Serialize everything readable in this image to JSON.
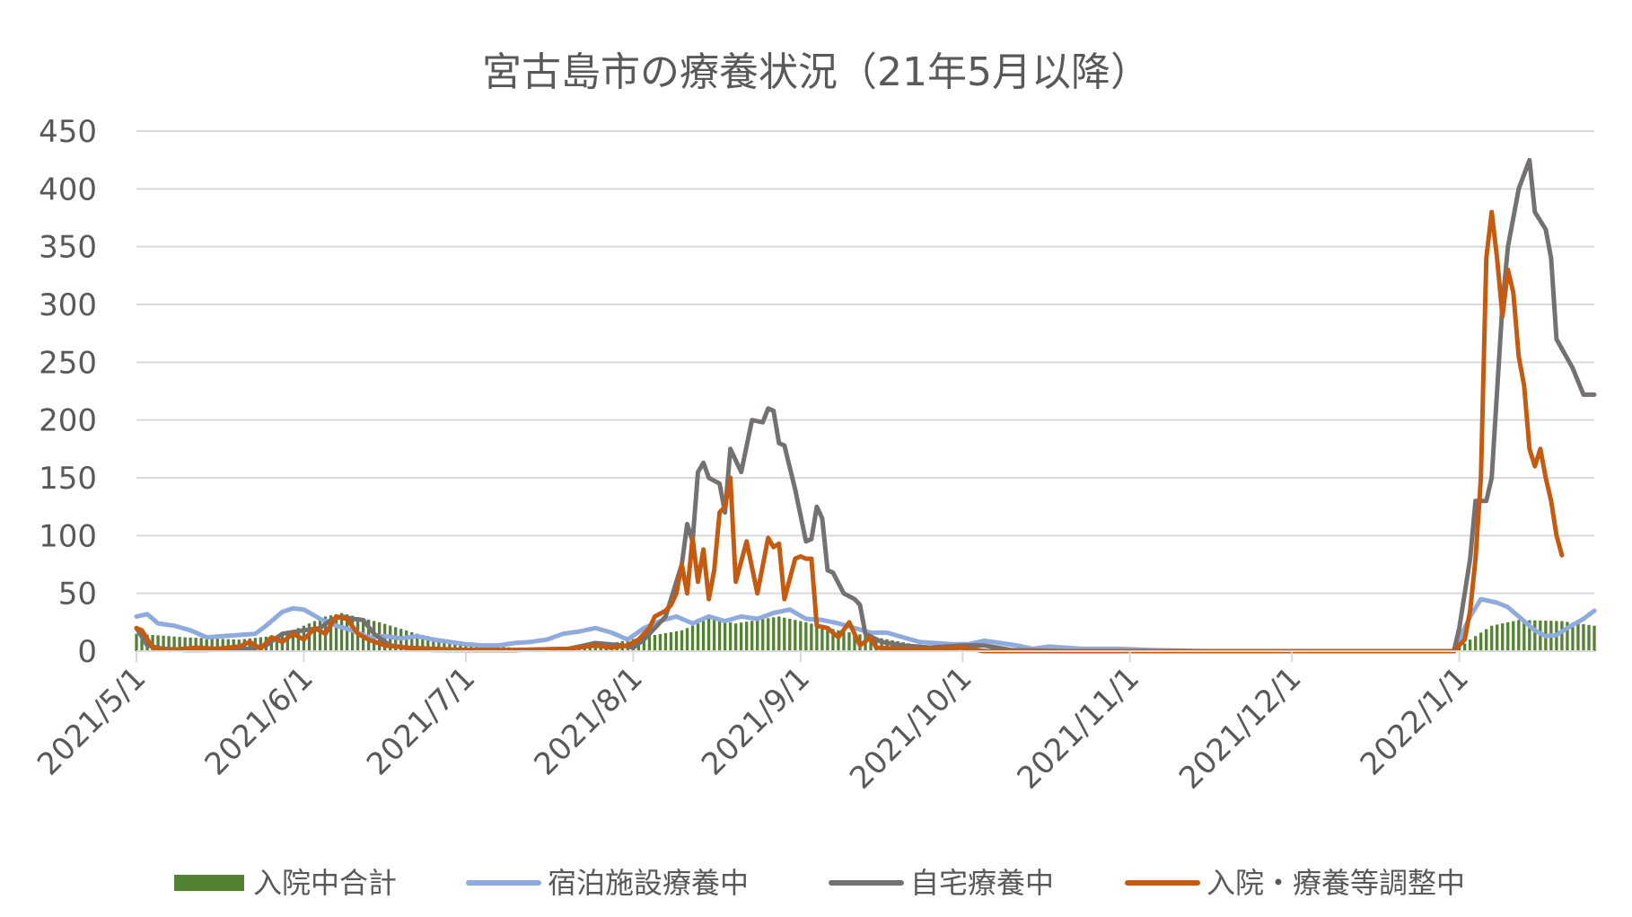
{
  "chart_data": {
    "type": "line",
    "title": "宮古島市の療養状況（21年5月以降）",
    "xlabel": "",
    "ylabel": "",
    "ylim": [
      0,
      450
    ],
    "yticks": [
      "0",
      "50",
      "100",
      "150",
      "200",
      "250",
      "300",
      "350",
      "400",
      "450"
    ],
    "xlim": [
      "2021/5/1",
      "2022/1/26"
    ],
    "xtick_labels": [
      "2021/5/1",
      "2021/6/1",
      "2021/7/1",
      "2021/8/1",
      "2021/9/1",
      "2021/10/1",
      "2021/11/1",
      "2021/12/1",
      "2022/1/1"
    ],
    "xtick_dates": [
      "2021-05-01",
      "2021-06-01",
      "2021-07-01",
      "2021-08-01",
      "2021-09-01",
      "2021-10-01",
      "2021-11-01",
      "2021-12-01",
      "2022-01-01"
    ],
    "grid": true,
    "legend_position": "bottom",
    "series": [
      {
        "name": "入院中合計",
        "type": "bar",
        "color": "#548235",
        "points": [
          [
            "2021-05-01",
            15
          ],
          [
            "2021-05-10",
            12
          ],
          [
            "2021-05-20",
            10
          ],
          [
            "2021-05-28",
            14
          ],
          [
            "2021-06-05",
            30
          ],
          [
            "2021-06-08",
            33
          ],
          [
            "2021-06-15",
            25
          ],
          [
            "2021-06-22",
            15
          ],
          [
            "2021-07-01",
            6
          ],
          [
            "2021-07-10",
            3
          ],
          [
            "2021-07-20",
            3
          ],
          [
            "2021-07-28",
            7
          ],
          [
            "2021-08-05",
            14
          ],
          [
            "2021-08-10",
            18
          ],
          [
            "2021-08-15",
            28
          ],
          [
            "2021-08-20",
            24
          ],
          [
            "2021-08-28",
            30
          ],
          [
            "2021-09-02",
            25
          ],
          [
            "2021-09-08",
            18
          ],
          [
            "2021-09-15",
            12
          ],
          [
            "2021-09-22",
            6
          ],
          [
            "2021-10-01",
            3
          ],
          [
            "2021-10-10",
            1
          ],
          [
            "2021-10-20",
            0
          ],
          [
            "2021-12-31",
            0
          ],
          [
            "2022-01-03",
            10
          ],
          [
            "2022-01-07",
            22
          ],
          [
            "2022-01-12",
            27
          ],
          [
            "2022-01-20",
            26
          ],
          [
            "2022-01-26",
            22
          ]
        ]
      },
      {
        "name": "宿泊施設療養中",
        "type": "line",
        "color": "#8faadc",
        "points": [
          [
            "2021-05-01",
            30
          ],
          [
            "2021-05-03",
            32
          ],
          [
            "2021-05-05",
            24
          ],
          [
            "2021-05-08",
            22
          ],
          [
            "2021-05-11",
            18
          ],
          [
            "2021-05-14",
            12
          ],
          [
            "2021-05-17",
            13
          ],
          [
            "2021-05-20",
            14
          ],
          [
            "2021-05-23",
            15
          ],
          [
            "2021-05-25",
            22
          ],
          [
            "2021-05-28",
            34
          ],
          [
            "2021-05-30",
            37
          ],
          [
            "2021-06-01",
            36
          ],
          [
            "2021-06-04",
            28
          ],
          [
            "2021-06-07",
            22
          ],
          [
            "2021-06-10",
            18
          ],
          [
            "2021-06-13",
            12
          ],
          [
            "2021-06-16",
            13
          ],
          [
            "2021-06-19",
            11
          ],
          [
            "2021-06-22",
            13
          ],
          [
            "2021-06-25",
            10
          ],
          [
            "2021-06-28",
            8
          ],
          [
            "2021-07-01",
            6
          ],
          [
            "2021-07-04",
            5
          ],
          [
            "2021-07-07",
            5
          ],
          [
            "2021-07-10",
            7
          ],
          [
            "2021-07-13",
            8
          ],
          [
            "2021-07-16",
            10
          ],
          [
            "2021-07-19",
            15
          ],
          [
            "2021-07-22",
            17
          ],
          [
            "2021-07-25",
            20
          ],
          [
            "2021-07-28",
            16
          ],
          [
            "2021-07-31",
            10
          ],
          [
            "2021-08-03",
            20
          ],
          [
            "2021-08-06",
            26
          ],
          [
            "2021-08-09",
            30
          ],
          [
            "2021-08-12",
            24
          ],
          [
            "2021-08-15",
            30
          ],
          [
            "2021-08-18",
            26
          ],
          [
            "2021-08-21",
            30
          ],
          [
            "2021-08-24",
            28
          ],
          [
            "2021-08-27",
            33
          ],
          [
            "2021-08-30",
            36
          ],
          [
            "2021-09-02",
            28
          ],
          [
            "2021-09-05",
            27
          ],
          [
            "2021-09-08",
            24
          ],
          [
            "2021-09-11",
            20
          ],
          [
            "2021-09-14",
            16
          ],
          [
            "2021-09-17",
            16
          ],
          [
            "2021-09-20",
            12
          ],
          [
            "2021-09-23",
            8
          ],
          [
            "2021-09-26",
            7
          ],
          [
            "2021-09-29",
            6
          ],
          [
            "2021-10-02",
            6
          ],
          [
            "2021-10-05",
            9
          ],
          [
            "2021-10-08",
            7
          ],
          [
            "2021-10-11",
            5
          ],
          [
            "2021-10-14",
            2
          ],
          [
            "2021-10-17",
            4
          ],
          [
            "2021-10-20",
            3
          ],
          [
            "2021-10-23",
            2
          ],
          [
            "2021-10-26",
            2
          ],
          [
            "2021-10-30",
            2
          ],
          [
            "2021-11-05",
            1
          ],
          [
            "2021-11-15",
            0
          ],
          [
            "2021-12-31",
            0
          ],
          [
            "2022-01-01",
            10
          ],
          [
            "2022-01-03",
            30
          ],
          [
            "2022-01-05",
            45
          ],
          [
            "2022-01-08",
            42
          ],
          [
            "2022-01-10",
            38
          ],
          [
            "2022-01-12",
            30
          ],
          [
            "2022-01-15",
            18
          ],
          [
            "2022-01-17",
            13
          ],
          [
            "2022-01-19",
            14
          ],
          [
            "2022-01-21",
            20
          ],
          [
            "2022-01-24",
            28
          ],
          [
            "2022-01-26",
            35
          ]
        ]
      },
      {
        "name": "自宅療養中",
        "type": "line",
        "color": "#767171",
        "points": [
          [
            "2021-05-01",
            20
          ],
          [
            "2021-05-03",
            5
          ],
          [
            "2021-05-06",
            2
          ],
          [
            "2021-05-10",
            1
          ],
          [
            "2021-05-14",
            1
          ],
          [
            "2021-05-18",
            2
          ],
          [
            "2021-05-22",
            2
          ],
          [
            "2021-05-25",
            5
          ],
          [
            "2021-05-28",
            15
          ],
          [
            "2021-06-01",
            18
          ],
          [
            "2021-06-04",
            20
          ],
          [
            "2021-06-06",
            27
          ],
          [
            "2021-06-08",
            30
          ],
          [
            "2021-06-10",
            28
          ],
          [
            "2021-06-12",
            27
          ],
          [
            "2021-06-14",
            15
          ],
          [
            "2021-06-17",
            5
          ],
          [
            "2021-06-20",
            3
          ],
          [
            "2021-06-25",
            1
          ],
          [
            "2021-07-01",
            1
          ],
          [
            "2021-07-10",
            1
          ],
          [
            "2021-07-20",
            2
          ],
          [
            "2021-07-25",
            7
          ],
          [
            "2021-07-30",
            5
          ],
          [
            "2021-08-01",
            3
          ],
          [
            "2021-08-03",
            10
          ],
          [
            "2021-08-05",
            20
          ],
          [
            "2021-08-07",
            30
          ],
          [
            "2021-08-09",
            60
          ],
          [
            "2021-08-10",
            75
          ],
          [
            "2021-08-11",
            110
          ],
          [
            "2021-08-12",
            95
          ],
          [
            "2021-08-13",
            155
          ],
          [
            "2021-08-14",
            163
          ],
          [
            "2021-08-15",
            150
          ],
          [
            "2021-08-17",
            145
          ],
          [
            "2021-08-18",
            120
          ],
          [
            "2021-08-19",
            175
          ],
          [
            "2021-08-21",
            155
          ],
          [
            "2021-08-23",
            200
          ],
          [
            "2021-08-25",
            198
          ],
          [
            "2021-08-26",
            210
          ],
          [
            "2021-08-27",
            208
          ],
          [
            "2021-08-28",
            180
          ],
          [
            "2021-08-29",
            178
          ],
          [
            "2021-08-31",
            140
          ],
          [
            "2021-09-02",
            95
          ],
          [
            "2021-09-03",
            97
          ],
          [
            "2021-09-04",
            125
          ],
          [
            "2021-09-05",
            115
          ],
          [
            "2021-09-06",
            70
          ],
          [
            "2021-09-07",
            68
          ],
          [
            "2021-09-09",
            50
          ],
          [
            "2021-09-11",
            45
          ],
          [
            "2021-09-12",
            40
          ],
          [
            "2021-09-13",
            15
          ],
          [
            "2021-09-16",
            8
          ],
          [
            "2021-09-20",
            5
          ],
          [
            "2021-09-25",
            3
          ],
          [
            "2021-10-01",
            5
          ],
          [
            "2021-10-05",
            5
          ],
          [
            "2021-10-10",
            1
          ],
          [
            "2021-10-20",
            0
          ],
          [
            "2021-12-31",
            0
          ],
          [
            "2022-01-01",
            20
          ],
          [
            "2022-01-03",
            80
          ],
          [
            "2022-01-04",
            130
          ],
          [
            "2022-01-06",
            130
          ],
          [
            "2022-01-07",
            150
          ],
          [
            "2022-01-09",
            300
          ],
          [
            "2022-01-10",
            350
          ],
          [
            "2022-01-12",
            400
          ],
          [
            "2022-01-14",
            425
          ],
          [
            "2022-01-15",
            380
          ],
          [
            "2022-01-17",
            365
          ],
          [
            "2022-01-18",
            340
          ],
          [
            "2022-01-19",
            270
          ],
          [
            "2022-01-22",
            245
          ],
          [
            "2022-01-24",
            222
          ],
          [
            "2022-01-26",
            222
          ]
        ]
      },
      {
        "name": "入院・療養等調整中",
        "type": "line",
        "color": "#c55a11",
        "points": [
          [
            "2021-05-01",
            20
          ],
          [
            "2021-05-02",
            18
          ],
          [
            "2021-05-04",
            3
          ],
          [
            "2021-05-07",
            1
          ],
          [
            "2021-05-12",
            3
          ],
          [
            "2021-05-16",
            2
          ],
          [
            "2021-05-20",
            4
          ],
          [
            "2021-05-22",
            8
          ],
          [
            "2021-05-24",
            2
          ],
          [
            "2021-05-26",
            12
          ],
          [
            "2021-05-28",
            8
          ],
          [
            "2021-05-30",
            15
          ],
          [
            "2021-06-01",
            10
          ],
          [
            "2021-06-03",
            20
          ],
          [
            "2021-06-05",
            15
          ],
          [
            "2021-06-07",
            30
          ],
          [
            "2021-06-09",
            28
          ],
          [
            "2021-06-11",
            15
          ],
          [
            "2021-06-13",
            10
          ],
          [
            "2021-06-16",
            5
          ],
          [
            "2021-06-20",
            3
          ],
          [
            "2021-06-25",
            2
          ],
          [
            "2021-07-01",
            1
          ],
          [
            "2021-07-10",
            1
          ],
          [
            "2021-07-20",
            2
          ],
          [
            "2021-07-25",
            5
          ],
          [
            "2021-07-28",
            3
          ],
          [
            "2021-07-31",
            5
          ],
          [
            "2021-08-02",
            10
          ],
          [
            "2021-08-04",
            20
          ],
          [
            "2021-08-05",
            30
          ],
          [
            "2021-08-07",
            35
          ],
          [
            "2021-08-08",
            40
          ],
          [
            "2021-08-09",
            50
          ],
          [
            "2021-08-10",
            75
          ],
          [
            "2021-08-11",
            50
          ],
          [
            "2021-08-12",
            98
          ],
          [
            "2021-08-13",
            60
          ],
          [
            "2021-08-14",
            88
          ],
          [
            "2021-08-15",
            45
          ],
          [
            "2021-08-16",
            70
          ],
          [
            "2021-08-17",
            120
          ],
          [
            "2021-08-18",
            125
          ],
          [
            "2021-08-19",
            150
          ],
          [
            "2021-08-20",
            60
          ],
          [
            "2021-08-22",
            95
          ],
          [
            "2021-08-24",
            50
          ],
          [
            "2021-08-26",
            98
          ],
          [
            "2021-08-27",
            90
          ],
          [
            "2021-08-28",
            93
          ],
          [
            "2021-08-29",
            45
          ],
          [
            "2021-08-31",
            80
          ],
          [
            "2021-09-01",
            82
          ],
          [
            "2021-09-02",
            80
          ],
          [
            "2021-09-03",
            80
          ],
          [
            "2021-09-04",
            22
          ],
          [
            "2021-09-06",
            20
          ],
          [
            "2021-09-08",
            12
          ],
          [
            "2021-09-10",
            25
          ],
          [
            "2021-09-12",
            5
          ],
          [
            "2021-09-14",
            12
          ],
          [
            "2021-09-15",
            3
          ],
          [
            "2021-09-20",
            2
          ],
          [
            "2021-09-25",
            2
          ],
          [
            "2021-10-01",
            3
          ],
          [
            "2021-10-05",
            0
          ],
          [
            "2021-12-31",
            0
          ],
          [
            "2022-01-02",
            10
          ],
          [
            "2022-01-03",
            35
          ],
          [
            "2022-01-04",
            80
          ],
          [
            "2022-01-05",
            150
          ],
          [
            "2022-01-06",
            340
          ],
          [
            "2022-01-07",
            380
          ],
          [
            "2022-01-08",
            340
          ],
          [
            "2022-01-09",
            290
          ],
          [
            "2022-01-10",
            330
          ],
          [
            "2022-01-11",
            310
          ],
          [
            "2022-01-12",
            255
          ],
          [
            "2022-01-13",
            230
          ],
          [
            "2022-01-14",
            175
          ],
          [
            "2022-01-15",
            160
          ],
          [
            "2022-01-16",
            175
          ],
          [
            "2022-01-17",
            150
          ],
          [
            "2022-01-18",
            130
          ],
          [
            "2022-01-19",
            100
          ],
          [
            "2022-01-20",
            83
          ]
        ]
      }
    ]
  }
}
